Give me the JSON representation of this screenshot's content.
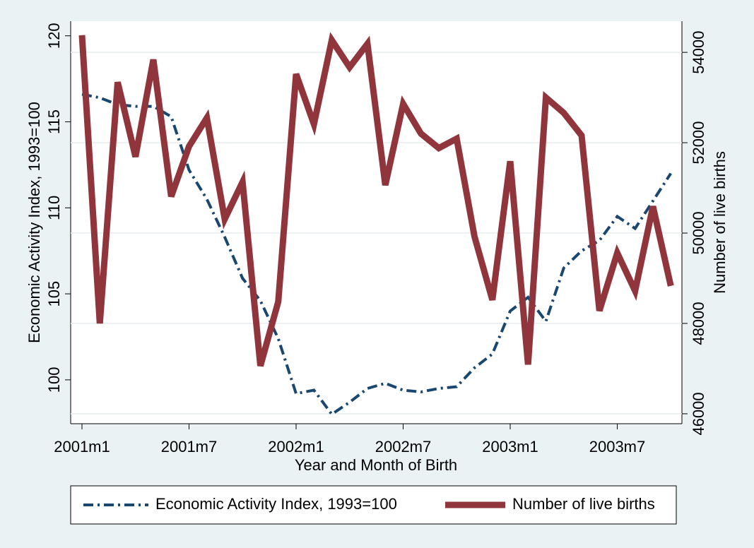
{
  "chart_data": {
    "type": "line",
    "x_label": "Year and Month of Birth",
    "y_label": "Economic Activity Index, 1993=100",
    "y2_label": "Number of live births",
    "categories": [
      "2001m1",
      null,
      null,
      null,
      null,
      null,
      "2001m7",
      null,
      null,
      null,
      null,
      null,
      "2002m1",
      null,
      null,
      null,
      null,
      null,
      "2002m7",
      null,
      null,
      null,
      null,
      null,
      "2003m1",
      null,
      null,
      null,
      null,
      null,
      "2003m7",
      null,
      null,
      null
    ],
    "series": [
      {
        "name": "Economic Activity Index, 1993=100",
        "color": "#1a476f",
        "axis": "y",
        "dash": "dashdot",
        "values": [
          116.6,
          116.4,
          116.0,
          115.9,
          115.9,
          115.3,
          112.2,
          110.5,
          108.3,
          105.9,
          104.6,
          102.4,
          99.2,
          99.4,
          98.0,
          98.7,
          99.5,
          99.8,
          99.4,
          99.3,
          99.5,
          99.6,
          100.7,
          101.5,
          104.0,
          104.8,
          103.4,
          106.5,
          107.5,
          108.1,
          109.5,
          108.8,
          110.4,
          112.0
        ]
      },
      {
        "name": "Number of live births",
        "color": "#90353b",
        "axis": "y2",
        "values": [
          54380,
          48000,
          53340,
          51690,
          53840,
          50810,
          51920,
          52550,
          50310,
          51130,
          47060,
          48480,
          53520,
          52410,
          54270,
          53670,
          54190,
          51060,
          52860,
          52200,
          51880,
          52090,
          49920,
          48520,
          51590,
          47090,
          53000,
          52660,
          52160,
          48280,
          49560,
          48720,
          50590,
          48830
        ]
      }
    ],
    "ylim": [
      97.45,
      120.85
    ],
    "yticks": [
      100,
      105,
      110,
      115,
      120
    ],
    "y2lim": [
      45780,
      54690
    ],
    "y2ticks": [
      46000,
      48000,
      50000,
      52000,
      54000
    ],
    "grid": true,
    "legend": "bottom"
  }
}
